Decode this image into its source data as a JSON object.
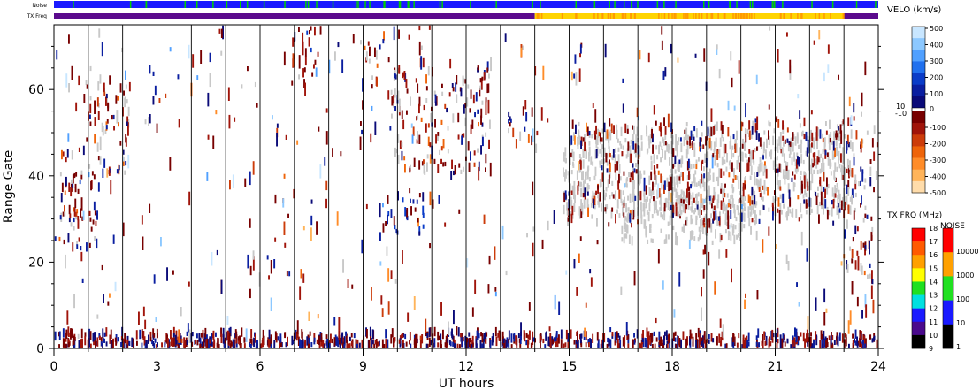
{
  "chart_data": {
    "type": "heatmap",
    "xlabel": "UT hours",
    "ylabel": "Range Gate",
    "xlim": [
      0,
      24
    ],
    "ylim": [
      0,
      75
    ],
    "x_ticks": [
      "0",
      "3",
      "6",
      "9",
      "12",
      "15",
      "18",
      "21",
      "24"
    ],
    "y_ticks": [
      "0",
      "20",
      "40",
      "60"
    ],
    "vertical_markers_ut": [
      1,
      2,
      3,
      4,
      5,
      6,
      7,
      8,
      9,
      10,
      11,
      12,
      13,
      14,
      15,
      16,
      17,
      18,
      19,
      20,
      21,
      22,
      23
    ],
    "top_bars": {
      "noise_label": "Noise",
      "txfreq_label": "TX Freq",
      "noise_base_color": "#1a1aff",
      "noise_spike_color": "#00d000",
      "txfreq_segments": [
        {
          "start": 0,
          "end": 14,
          "color": "#5a0a8c"
        },
        {
          "start": 14,
          "end": 23,
          "color": "#ffd400"
        },
        {
          "start": 23,
          "end": 24,
          "color": "#5a0a8c"
        }
      ]
    },
    "velocity_colorbar": {
      "title": "VELO (km/s)",
      "positive_labels": [
        "500",
        "400",
        "300",
        "200",
        "100",
        "10"
      ],
      "zero_labels": [
        "0",
        "10",
        "-10"
      ],
      "negative_labels": [
        "-100",
        "-200",
        "-300",
        "-400",
        "-500"
      ],
      "positive_colors": [
        "#c8e6ff",
        "#8cc8ff",
        "#50a0ff",
        "#2070ee",
        "#0a3cc8",
        "#0a1ea0",
        "#0a0a78"
      ],
      "negative_colors": [
        "#780000",
        "#a0140a",
        "#cc3c0a",
        "#ee640a",
        "#ff8c28",
        "#ffb45a",
        "#ffdcaa"
      ]
    },
    "txfreq_colorbar": {
      "title": "TX FRQ (MHz)",
      "labels": [
        "18",
        "17",
        "16",
        "15",
        "14",
        "13",
        "12",
        "11",
        "10",
        "9"
      ],
      "colors": [
        "#ff0000",
        "#ff5a00",
        "#ffa000",
        "#ffff00",
        "#20e020",
        "#00e0e0",
        "#1a1aff",
        "#4a0a8c",
        "#000000"
      ]
    },
    "noise_colorbar": {
      "title": "NOISE",
      "labels": [
        "10000",
        "1000",
        "100",
        "10",
        "1"
      ],
      "colors": [
        "#ff0000",
        "#ffa000",
        "#20e020",
        "#1a1aff",
        "#000000"
      ]
    },
    "ground_scatter_color": "#c8c8c8",
    "scatter_regions": [
      {
        "t0": 0.0,
        "t1": 0.7,
        "g0": 22,
        "g1": 45,
        "kind": "mixed"
      },
      {
        "t0": 0.5,
        "t1": 1.3,
        "g0": 22,
        "g1": 40,
        "kind": "neg"
      },
      {
        "t0": 0.9,
        "t1": 2.2,
        "g0": 40,
        "g1": 62,
        "kind": "mixed"
      },
      {
        "t0": 6.9,
        "t1": 7.6,
        "g0": 60,
        "g1": 75,
        "kind": "neg"
      },
      {
        "t0": 9.0,
        "t1": 9.6,
        "g0": 60,
        "g1": 72,
        "kind": "mixed"
      },
      {
        "t0": 9.8,
        "t1": 12.7,
        "g0": 40,
        "g1": 66,
        "kind": "mixed"
      },
      {
        "t0": 9.5,
        "t1": 10.8,
        "g0": 26,
        "g1": 35,
        "kind": "pos"
      },
      {
        "t0": 13.2,
        "t1": 13.9,
        "g0": 45,
        "g1": 55,
        "kind": "mixed"
      },
      {
        "t0": 14.8,
        "t1": 23.2,
        "g0": 30,
        "g1": 50,
        "kind": "ground"
      },
      {
        "t0": 16.5,
        "t1": 20.5,
        "g0": 24,
        "g1": 35,
        "kind": "ground"
      },
      {
        "t0": 14.8,
        "t1": 23.2,
        "g0": 28,
        "g1": 52,
        "kind": "mixed"
      },
      {
        "t0": 23.0,
        "t1": 24.0,
        "g0": 16,
        "g1": 50,
        "kind": "mixed"
      },
      {
        "t0": 0.0,
        "t1": 24.0,
        "g0": 0,
        "g1": 3,
        "kind": "near"
      },
      {
        "t0": 0.0,
        "t1": 24.0,
        "g0": 0,
        "g1": 75,
        "kind": "sparse"
      }
    ]
  }
}
